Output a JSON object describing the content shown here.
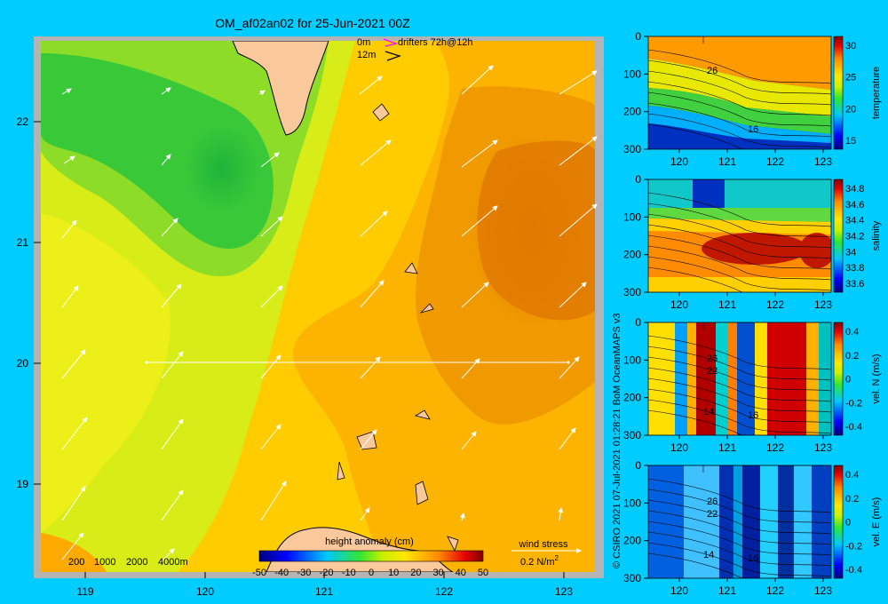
{
  "title": "OM_af02an02 for 25-Jun-2021 00Z",
  "map": {
    "lon_ticks": [
      "119",
      "120",
      "121",
      "122",
      "123"
    ],
    "lat_ticks": [
      "22",
      "21",
      "20",
      "19"
    ],
    "drifter_legend": {
      "depth_0": "0m",
      "depth_12": "12m",
      "text": "drifters 72h@12h"
    },
    "bathy_legend": [
      "200",
      "1000",
      "2000",
      "4000m"
    ],
    "colorbar": {
      "label": "height anomaly (cm)",
      "ticks": [
        "-50",
        "-40",
        "-30",
        "-20",
        "-10",
        "0",
        "10",
        "20",
        "30",
        "40",
        "50"
      ]
    },
    "wind_legend": {
      "label": "wind stress",
      "value": "0.2 N/m",
      "exponent": "2"
    }
  },
  "sections": [
    {
      "variable": "temperature",
      "y_ticks": [
        "0",
        "100",
        "200",
        "300"
      ],
      "x_ticks": [
        "120",
        "121",
        "122",
        "123"
      ],
      "cbar_ticks": [
        "30",
        "25",
        "20",
        "15"
      ],
      "contour_labels": [
        "26",
        "16"
      ]
    },
    {
      "variable": "salinity",
      "y_ticks": [
        "0",
        "100",
        "200",
        "300"
      ],
      "x_ticks": [
        "120",
        "121",
        "122",
        "123"
      ],
      "cbar_ticks": [
        "34.8",
        "34.6",
        "34.4",
        "34.2",
        "34",
        "33.8",
        "33.6"
      ],
      "contour_labels": []
    },
    {
      "variable": "vel. N (m/s)",
      "y_ticks": [
        "0",
        "100",
        "200",
        "300"
      ],
      "x_ticks": [
        "120",
        "121",
        "122",
        "123"
      ],
      "cbar_ticks": [
        "0.4",
        "0.2",
        "0",
        "-0.2",
        "-0.4"
      ],
      "contour_labels": [
        "26",
        "22",
        "14",
        "16"
      ]
    },
    {
      "variable": "vel. E (m/s)",
      "y_ticks": [
        "0",
        "100",
        "200",
        "300"
      ],
      "x_ticks": [
        "120",
        "121",
        "122",
        "123"
      ],
      "cbar_ticks": [
        "0.4",
        "0.2",
        "0",
        "-0.2",
        "-0.4"
      ],
      "contour_labels": [
        "26",
        "22",
        "14",
        "16"
      ]
    }
  ],
  "credit": "© CSIRO 2021   07-Jul-2021 01:28:21 BoM OceanMAPS v3",
  "colors": {
    "background": "#00ccff",
    "land": "#f9c89b",
    "border": "#b4b4b4"
  }
}
